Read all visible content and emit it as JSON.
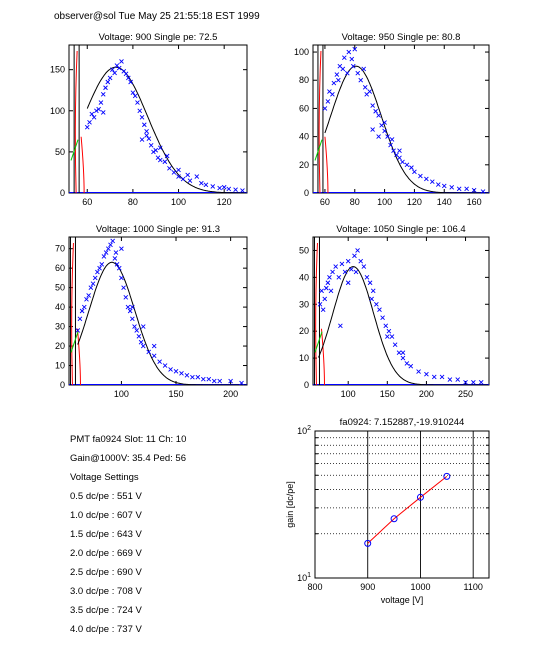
{
  "header": "observer@sol  Tue May 25 21:55:18 EST 1999",
  "info": {
    "pmt": "PMT fa0924 Slot: 11 Ch: 10",
    "gain": "Gain@1000V: 35.4 Ped: 56",
    "settings_title": "Voltage Settings",
    "settings": [
      "0.5 dc/pe : 551 V",
      "1.0 dc/pe : 607 V",
      "1.5 dc/pe : 643 V",
      "2.0 dc/pe : 669 V",
      "2.5 dc/pe : 690 V",
      "3.0 dc/pe : 708 V",
      "3.5 dc/pe : 724 V",
      "4.0 dc/pe : 737 V"
    ]
  },
  "colors": {
    "data": "#0000ff",
    "fit": "#000000",
    "pedestal": "#ff0000",
    "onset": "#00cc00",
    "gain_line": "#ff0000"
  },
  "chart_data": [
    {
      "type": "scatter",
      "title": "Voltage: 900 Single pe: 72.5",
      "xlim": [
        52,
        130
      ],
      "ylim": [
        0,
        180
      ],
      "xticks": [
        60,
        80,
        100,
        120
      ],
      "yticks": [
        0,
        50,
        100,
        150
      ],
      "grid": false,
      "pedestal_x": 56,
      "fit": {
        "amplitude": 153,
        "mean": 72.5,
        "sigma": 14,
        "x_start": 60
      },
      "points": [
        [
          60,
          80
        ],
        [
          61,
          86
        ],
        [
          62,
          96
        ],
        [
          63,
          92
        ],
        [
          64,
          100
        ],
        [
          65,
          102
        ],
        [
          66,
          110
        ],
        [
          67,
          120
        ],
        [
          67,
          98
        ],
        [
          68,
          128
        ],
        [
          69,
          135
        ],
        [
          70,
          140
        ],
        [
          71,
          150
        ],
        [
          72,
          146
        ],
        [
          73,
          155
        ],
        [
          74,
          152
        ],
        [
          75,
          160
        ],
        [
          76,
          148
        ],
        [
          77,
          145
        ],
        [
          78,
          140
        ],
        [
          79,
          135
        ],
        [
          80,
          122
        ],
        [
          81,
          118
        ],
        [
          82,
          110
        ],
        [
          83,
          100
        ],
        [
          84,
          92
        ],
        [
          85,
          83
        ],
        [
          86,
          75
        ],
        [
          87,
          66
        ],
        [
          88,
          58
        ],
        [
          89,
          50
        ],
        [
          90,
          52
        ],
        [
          91,
          43
        ],
        [
          92,
          40
        ],
        [
          94,
          38
        ],
        [
          96,
          30
        ],
        [
          98,
          25
        ],
        [
          100,
          20
        ],
        [
          102,
          17
        ],
        [
          105,
          15
        ],
        [
          108,
          20
        ],
        [
          110,
          12
        ],
        [
          112,
          10
        ],
        [
          115,
          8
        ],
        [
          118,
          6
        ],
        [
          120,
          7
        ],
        [
          122,
          5
        ],
        [
          125,
          4
        ],
        [
          128,
          3
        ],
        [
          84,
          65
        ],
        [
          86,
          70
        ],
        [
          92,
          55
        ],
        [
          95,
          45
        ],
        [
          100,
          28
        ],
        [
          104,
          22
        ]
      ]
    },
    {
      "type": "scatter",
      "title": "Voltage: 950 Single pe: 80.8",
      "xlim": [
        52,
        170
      ],
      "ylim": [
        0,
        105
      ],
      "xticks": [
        60,
        80,
        100,
        120,
        140,
        160
      ],
      "yticks": [
        0,
        20,
        40,
        60,
        80,
        100
      ],
      "grid": false,
      "pedestal_x": 58,
      "fit": {
        "amplitude": 90,
        "mean": 80.8,
        "sigma": 17,
        "x_start": 60
      },
      "points": [
        [
          60,
          60
        ],
        [
          62,
          65
        ],
        [
          63,
          72
        ],
        [
          65,
          70
        ],
        [
          66,
          78
        ],
        [
          68,
          84
        ],
        [
          69,
          80
        ],
        [
          70,
          90
        ],
        [
          72,
          88
        ],
        [
          73,
          96
        ],
        [
          75,
          85
        ],
        [
          76,
          100
        ],
        [
          78,
          95
        ],
        [
          79,
          90
        ],
        [
          80,
          102
        ],
        [
          82,
          85
        ],
        [
          84,
          80
        ],
        [
          86,
          88
        ],
        [
          87,
          75
        ],
        [
          88,
          70
        ],
        [
          90,
          72
        ],
        [
          92,
          62
        ],
        [
          94,
          58
        ],
        [
          96,
          55
        ],
        [
          98,
          48
        ],
        [
          100,
          44
        ],
        [
          102,
          40
        ],
        [
          104,
          34
        ],
        [
          106,
          30
        ],
        [
          108,
          27
        ],
        [
          110,
          25
        ],
        [
          112,
          22
        ],
        [
          115,
          20
        ],
        [
          118,
          18
        ],
        [
          120,
          15
        ],
        [
          124,
          12
        ],
        [
          128,
          10
        ],
        [
          132,
          8
        ],
        [
          136,
          6
        ],
        [
          140,
          5
        ],
        [
          145,
          4
        ],
        [
          150,
          3
        ],
        [
          155,
          3
        ],
        [
          160,
          2
        ],
        [
          166,
          1
        ],
        [
          92,
          45
        ],
        [
          96,
          40
        ],
        [
          100,
          50
        ],
        [
          105,
          38
        ],
        [
          110,
          30
        ]
      ]
    },
    {
      "type": "scatter",
      "title": "Voltage: 1000 Single pe: 91.3",
      "xlim": [
        52,
        215
      ],
      "ylim": [
        0,
        76
      ],
      "xticks": [
        100,
        150,
        200
      ],
      "yticks": [
        0,
        10,
        20,
        30,
        40,
        50,
        60,
        70
      ],
      "grid": false,
      "pedestal_x": 57,
      "fit": {
        "amplitude": 63,
        "mean": 91.3,
        "sigma": 21,
        "x_start": 60
      },
      "points": [
        [
          60,
          28
        ],
        [
          62,
          34
        ],
        [
          64,
          38
        ],
        [
          66,
          40
        ],
        [
          68,
          44
        ],
        [
          70,
          46
        ],
        [
          72,
          50
        ],
        [
          74,
          52
        ],
        [
          76,
          55
        ],
        [
          78,
          58
        ],
        [
          80,
          60
        ],
        [
          82,
          62
        ],
        [
          84,
          66
        ],
        [
          86,
          68
        ],
        [
          88,
          70
        ],
        [
          90,
          72
        ],
        [
          92,
          74
        ],
        [
          94,
          65
        ],
        [
          96,
          62
        ],
        [
          98,
          60
        ],
        [
          100,
          55
        ],
        [
          102,
          50
        ],
        [
          104,
          45
        ],
        [
          106,
          40
        ],
        [
          108,
          38
        ],
        [
          110,
          34
        ],
        [
          112,
          30
        ],
        [
          114,
          28
        ],
        [
          116,
          25
        ],
        [
          118,
          22
        ],
        [
          120,
          20
        ],
        [
          125,
          17
        ],
        [
          130,
          15
        ],
        [
          135,
          12
        ],
        [
          140,
          10
        ],
        [
          145,
          8
        ],
        [
          150,
          7
        ],
        [
          155,
          6
        ],
        [
          160,
          5
        ],
        [
          165,
          4
        ],
        [
          170,
          4
        ],
        [
          175,
          3
        ],
        [
          180,
          3
        ],
        [
          185,
          2
        ],
        [
          190,
          2
        ],
        [
          200,
          2
        ],
        [
          210,
          1
        ],
        [
          100,
          70
        ],
        [
          95,
          68
        ],
        [
          110,
          40
        ],
        [
          120,
          30
        ],
        [
          130,
          20
        ]
      ]
    },
    {
      "type": "scatter",
      "title": "Voltage: 1050 Single pe: 106.4",
      "xlim": [
        55,
        280
      ],
      "ylim": [
        0,
        55
      ],
      "xticks": [
        100,
        150,
        200,
        250
      ],
      "yticks": [
        0,
        10,
        20,
        30,
        40,
        50
      ],
      "grid": false,
      "pedestal_x": 62,
      "fit": {
        "amplitude": 44,
        "mean": 106.4,
        "sigma": 26,
        "x_start": 62
      },
      "points": [
        [
          64,
          30
        ],
        [
          66,
          35
        ],
        [
          68,
          28
        ],
        [
          70,
          32
        ],
        [
          72,
          36
        ],
        [
          74,
          38
        ],
        [
          76,
          40
        ],
        [
          78,
          35
        ],
        [
          80,
          42
        ],
        [
          84,
          44
        ],
        [
          88,
          40
        ],
        [
          92,
          45
        ],
        [
          96,
          42
        ],
        [
          100,
          46
        ],
        [
          104,
          43
        ],
        [
          108,
          48
        ],
        [
          112,
          50
        ],
        [
          116,
          46
        ],
        [
          120,
          44
        ],
        [
          124,
          40
        ],
        [
          128,
          38
        ],
        [
          132,
          35
        ],
        [
          136,
          30
        ],
        [
          140,
          28
        ],
        [
          144,
          25
        ],
        [
          148,
          22
        ],
        [
          152,
          20
        ],
        [
          156,
          18
        ],
        [
          160,
          15
        ],
        [
          165,
          12
        ],
        [
          170,
          10
        ],
        [
          175,
          8
        ],
        [
          180,
          7
        ],
        [
          190,
          5
        ],
        [
          200,
          4
        ],
        [
          210,
          3
        ],
        [
          220,
          3
        ],
        [
          230,
          2
        ],
        [
          240,
          2
        ],
        [
          250,
          1
        ],
        [
          260,
          1
        ],
        [
          270,
          1
        ],
        [
          90,
          22
        ],
        [
          100,
          38
        ],
        [
          110,
          42
        ],
        [
          130,
          32
        ],
        [
          150,
          18
        ],
        [
          170,
          12
        ]
      ]
    },
    {
      "type": "line",
      "title": "fa0924: 7.152887,-19.910244",
      "xlabel": "voltage [V]",
      "ylabel": "gain [dc/pe]",
      "xlim": [
        800,
        1130
      ],
      "ylim_log": [
        10,
        100
      ],
      "xticks": [
        800,
        900,
        1000,
        1100
      ],
      "yticks_major": [
        10,
        100
      ],
      "yscale": "log",
      "grid": true,
      "x": [
        900,
        950,
        1000,
        1050
      ],
      "y": [
        17.2,
        25.3,
        35.4,
        49.1
      ]
    }
  ]
}
